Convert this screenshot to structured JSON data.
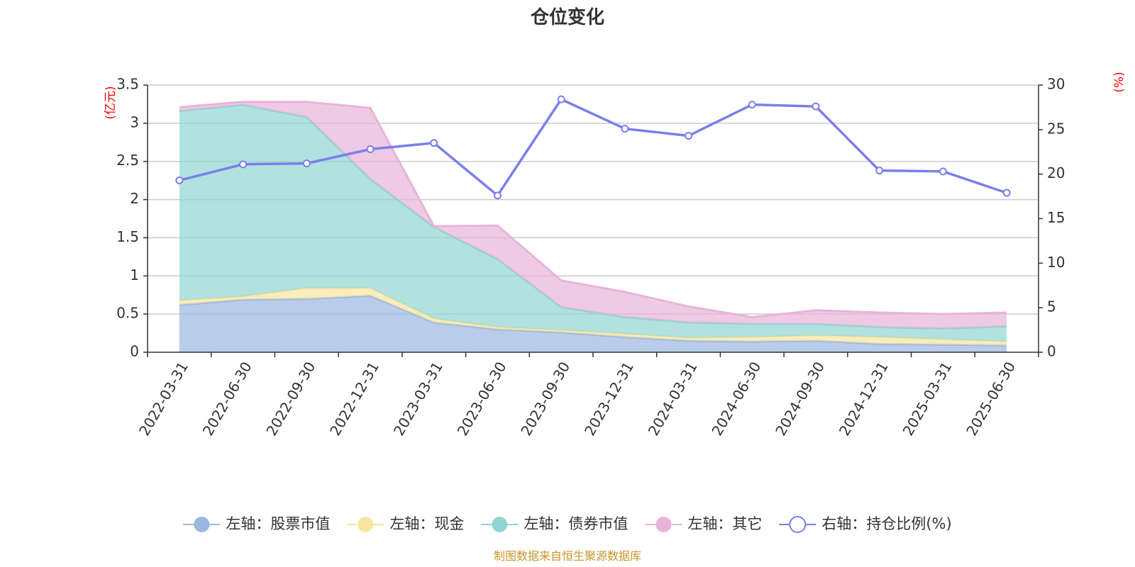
{
  "chart_data": {
    "type": "area",
    "title": "仓位变化",
    "left_axis_unit": "(亿元)",
    "right_axis_unit": "(%)",
    "categories": [
      "2022-03-31",
      "2022-06-30",
      "2022-09-30",
      "2022-12-31",
      "2023-03-31",
      "2023-06-30",
      "2023-09-30",
      "2023-12-31",
      "2024-03-31",
      "2024-06-30",
      "2024-09-30",
      "2024-12-31",
      "2025-03-31",
      "2025-06-30"
    ],
    "y_left_ticks": [
      "0",
      "0.5",
      "1",
      "1.5",
      "2",
      "2.5",
      "3",
      "3.5"
    ],
    "y_left_range": [
      0,
      3.5
    ],
    "y_right_ticks": [
      "0",
      "5",
      "10",
      "15",
      "20",
      "25",
      "30"
    ],
    "y_right_range": [
      0,
      30
    ],
    "grid": true,
    "legend_position": "bottom",
    "stacked_series": [
      {
        "name": "左轴：股票市值",
        "axis": "left",
        "color": "#9bb7e0",
        "values": [
          0.62,
          0.69,
          0.7,
          0.74,
          0.39,
          0.3,
          0.26,
          0.2,
          0.15,
          0.14,
          0.15,
          0.11,
          0.1,
          0.09
        ]
      },
      {
        "name": "左轴：现金",
        "axis": "left",
        "color": "#f7e6a2",
        "values": [
          0.06,
          0.04,
          0.14,
          0.1,
          0.05,
          0.03,
          0.03,
          0.04,
          0.04,
          0.06,
          0.07,
          0.09,
          0.07,
          0.05
        ]
      },
      {
        "name": "左轴：债券市值",
        "axis": "left",
        "color": "#91d5d3",
        "values": [
          2.48,
          2.51,
          2.24,
          1.43,
          1.2,
          0.89,
          0.3,
          0.22,
          0.2,
          0.17,
          0.15,
          0.13,
          0.14,
          0.2
        ]
      },
      {
        "name": "左轴：其它",
        "axis": "left",
        "color": "#e8b4d8",
        "values": [
          0.05,
          0.04,
          0.2,
          0.93,
          0.01,
          0.44,
          0.35,
          0.33,
          0.21,
          0.09,
          0.18,
          0.19,
          0.19,
          0.18
        ]
      }
    ],
    "line_series": {
      "name": "右轴：持仓比例(%)",
      "axis": "right",
      "color": "#7a7fea",
      "values": [
        19.3,
        21.1,
        21.2,
        22.8,
        23.5,
        17.6,
        28.4,
        25.1,
        24.3,
        27.8,
        27.6,
        20.4,
        20.3,
        17.9
      ]
    },
    "source": "制图数据来自恒生聚源数据库"
  }
}
